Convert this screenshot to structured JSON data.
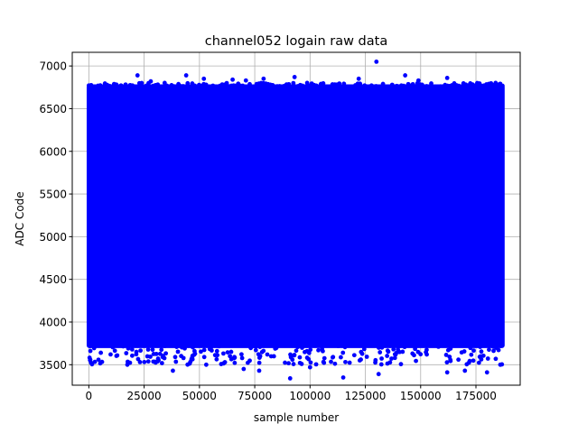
{
  "chart_data": {
    "type": "scatter",
    "title": "channel052 logain raw data",
    "xlabel": "sample number",
    "ylabel": "ADC Code",
    "xlim": [
      -7500,
      195000
    ],
    "ylim": [
      3260,
      7160
    ],
    "x_ticks": [
      0,
      25000,
      50000,
      75000,
      100000,
      125000,
      150000,
      175000
    ],
    "y_ticks": [
      3500,
      4000,
      4500,
      5000,
      5500,
      6000,
      6500,
      7000
    ],
    "grid": true,
    "marker": "circle",
    "color": "#0000ff",
    "series": [
      {
        "x_range": [
          0,
          187000
        ],
        "dense_band": [
          3720,
          6760
        ],
        "lower_sparse_band": [
          3500,
          3760
        ],
        "outliers": [
          {
            "x": 22000,
            "y": 6890
          },
          {
            "x": 28000,
            "y": 6820
          },
          {
            "x": 44000,
            "y": 6890
          },
          {
            "x": 52000,
            "y": 6850
          },
          {
            "x": 65000,
            "y": 6840
          },
          {
            "x": 71000,
            "y": 6830
          },
          {
            "x": 79000,
            "y": 6850
          },
          {
            "x": 93000,
            "y": 6870
          },
          {
            "x": 122000,
            "y": 6850
          },
          {
            "x": 130000,
            "y": 7050
          },
          {
            "x": 143000,
            "y": 6890
          },
          {
            "x": 149000,
            "y": 6830
          },
          {
            "x": 162000,
            "y": 6860
          },
          {
            "x": 38000,
            "y": 3430
          },
          {
            "x": 70000,
            "y": 3450
          },
          {
            "x": 77000,
            "y": 3430
          },
          {
            "x": 91000,
            "y": 3340
          },
          {
            "x": 100000,
            "y": 3470
          },
          {
            "x": 115000,
            "y": 3350
          },
          {
            "x": 131000,
            "y": 3390
          },
          {
            "x": 162000,
            "y": 3410
          },
          {
            "x": 170000,
            "y": 3430
          },
          {
            "x": 180000,
            "y": 3410
          },
          {
            "x": 186000,
            "y": 3500
          }
        ]
      }
    ]
  }
}
